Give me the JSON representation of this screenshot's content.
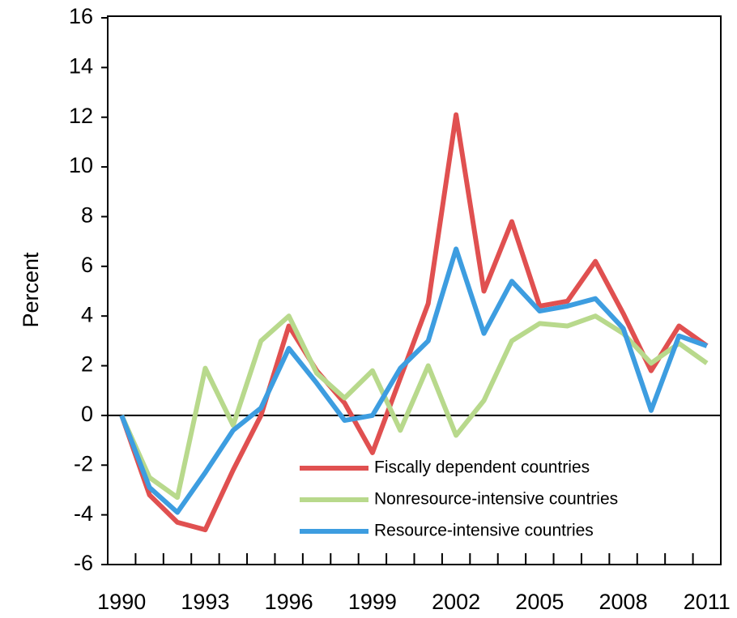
{
  "chart_data": {
    "type": "line",
    "y_label": "Percent",
    "categories": [
      "1990",
      null,
      null,
      "1993",
      null,
      null,
      "1996",
      null,
      null,
      "1999",
      null,
      null,
      "2002",
      null,
      null,
      "2005",
      null,
      null,
      "2008",
      null,
      null,
      "2011"
    ],
    "series": [
      {
        "name": "Fiscally dependent countries",
        "color": "#e05050",
        "values": [
          0,
          -3.2,
          -4.3,
          -4.6,
          -2.2,
          0,
          3.6,
          1.8,
          0.5,
          -1.5,
          1.5,
          4.5,
          12.1,
          5.0,
          7.8,
          4.4,
          4.6,
          6.2,
          4.1,
          1.8,
          3.6,
          2.8
        ]
      },
      {
        "name": "Nonresource-intensive countries",
        "color": "#b8d98c",
        "values": [
          0,
          -2.5,
          -3.3,
          1.9,
          -0.4,
          3.0,
          4.0,
          1.7,
          0.7,
          1.8,
          -0.6,
          2.0,
          -0.8,
          0.6,
          3.0,
          3.7,
          3.6,
          4.0,
          3.3,
          2.1,
          2.9,
          2.1
        ]
      },
      {
        "name": "Resource-intensive countries",
        "color": "#3d9de0",
        "values": [
          0,
          -2.9,
          -3.9,
          -2.3,
          -0.6,
          0.3,
          2.7,
          1.3,
          -0.2,
          0,
          1.9,
          3.0,
          6.7,
          3.3,
          5.4,
          4.2,
          4.4,
          4.7,
          3.5,
          0.2,
          3.2,
          2.8
        ]
      }
    ],
    "ylim": [
      -6,
      16
    ],
    "yticks": [
      -6,
      -4,
      -2,
      0,
      2,
      4,
      6,
      8,
      10,
      12,
      14,
      16
    ]
  }
}
